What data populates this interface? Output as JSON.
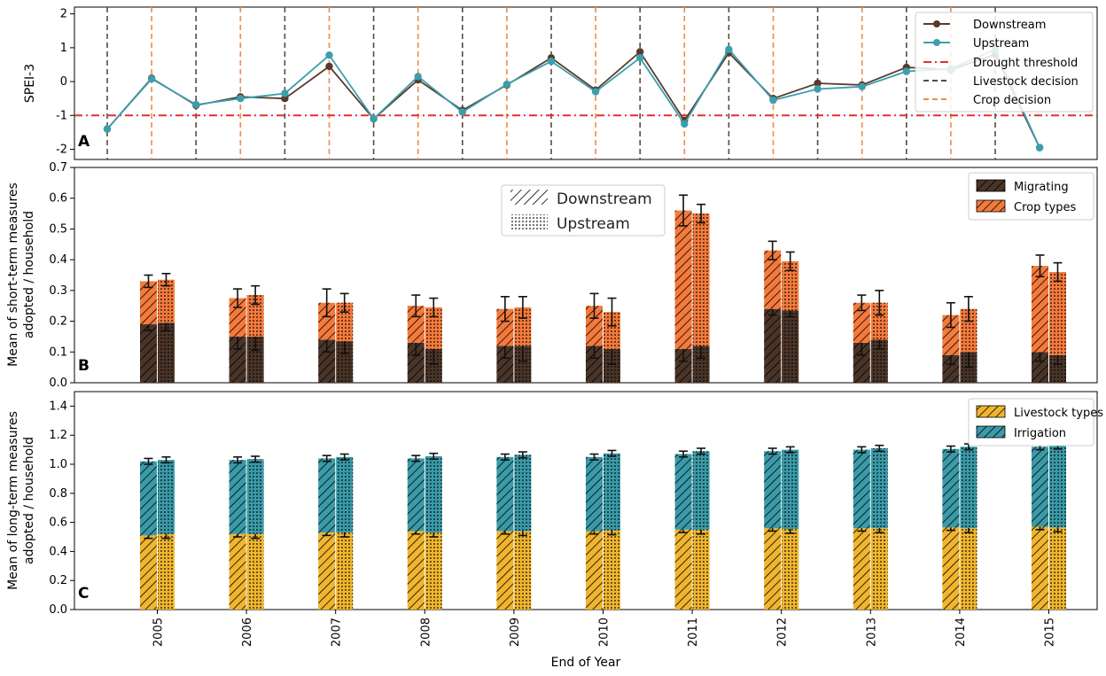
{
  "xlabel": "End of Year",
  "years": [
    "2005",
    "2006",
    "2007",
    "2008",
    "2009",
    "2010",
    "2011",
    "2012",
    "2013",
    "2014",
    "2015"
  ],
  "colors": {
    "downstream": "#5a3a2c",
    "upstream": "#3a9fae",
    "drought": "#e03030",
    "livestock_line": "#5a4a3e",
    "crop_line": "#f08a48",
    "migrating": "#4a3428",
    "crop_types": "#f47a3c",
    "livestock_types": "#f0b52e",
    "irrigation": "#3a9aa8"
  },
  "chart_data": [
    {
      "type": "line",
      "panel_label": "A",
      "ylabel": "SPEI-3",
      "ylim": [
        -2.3,
        2.2
      ],
      "yticks": [
        -2,
        -1,
        0,
        1,
        2
      ],
      "x_range": [
        0,
        21.2
      ],
      "drought_threshold": -1,
      "livestock_decision_x": [
        0,
        2,
        4,
        6,
        8,
        10,
        12,
        14,
        16,
        18,
        20
      ],
      "crop_decision_x": [
        1,
        3,
        5,
        7,
        9,
        11,
        13,
        15,
        17,
        19
      ],
      "series": [
        {
          "name": "Downstream",
          "x": [
            0,
            1,
            2,
            3,
            4,
            5,
            6,
            7,
            8,
            9,
            10,
            11,
            12,
            13,
            14,
            15,
            16,
            17,
            18,
            19,
            20,
            21
          ],
          "values": [
            -1.4,
            0.1,
            -0.7,
            -0.45,
            -0.5,
            0.45,
            -1.1,
            0.05,
            -0.85,
            -0.1,
            0.7,
            -0.25,
            0.88,
            -1.15,
            0.85,
            -0.5,
            -0.05,
            -0.1,
            0.42,
            0.35,
            0.8,
            -1.95
          ]
        },
        {
          "name": "Upstream",
          "x": [
            0,
            1,
            2,
            3,
            4,
            5,
            6,
            7,
            8,
            9,
            10,
            11,
            12,
            13,
            14,
            15,
            16,
            17,
            18,
            19,
            20,
            21
          ],
          "values": [
            -1.4,
            0.08,
            -0.68,
            -0.5,
            -0.35,
            0.78,
            -1.1,
            0.15,
            -0.9,
            -0.08,
            0.6,
            -0.3,
            0.7,
            -1.25,
            0.95,
            -0.55,
            -0.22,
            -0.15,
            0.3,
            0.38,
            0.95,
            -1.95
          ]
        }
      ],
      "legend": [
        "Downstream",
        "Upstream",
        "Drought threshold",
        "Livestock decision",
        "Crop decision"
      ],
      "legend_position": "top-right"
    },
    {
      "type": "bar",
      "stacked": true,
      "panel_label": "B",
      "ylabel_lines": [
        "Mean of short-term measures",
        "adopted / household"
      ],
      "ylim": [
        0,
        0.7
      ],
      "yticks": [
        0.0,
        0.1,
        0.2,
        0.3,
        0.4,
        0.5,
        0.6,
        0.7
      ],
      "categories": [
        "2005",
        "2006",
        "2007",
        "2008",
        "2009",
        "2010",
        "2011",
        "2012",
        "2013",
        "2014",
        "2015"
      ],
      "groups": [
        {
          "name": "Downstream",
          "hatch": "diagonal",
          "series": [
            {
              "name": "Migrating",
              "values": [
                0.19,
                0.15,
                0.14,
                0.13,
                0.12,
                0.12,
                0.11,
                0.24,
                0.13,
                0.09,
                0.1
              ],
              "errors": [
                0.02,
                0.04,
                0.04,
                0.04,
                0.04,
                0.04,
                0.04,
                0.02,
                0.04,
                0.03,
                0.03
              ]
            },
            {
              "name": "Crop types",
              "values": [
                0.14,
                0.125,
                0.12,
                0.12,
                0.12,
                0.13,
                0.45,
                0.19,
                0.13,
                0.13,
                0.28
              ],
              "errors": [
                0.02,
                0.03,
                0.045,
                0.035,
                0.04,
                0.04,
                0.05,
                0.03,
                0.025,
                0.04,
                0.035
              ]
            }
          ]
        },
        {
          "name": "Upstream",
          "hatch": "dots",
          "series": [
            {
              "name": "Migrating",
              "values": [
                0.195,
                0.15,
                0.135,
                0.11,
                0.12,
                0.11,
                0.12,
                0.235,
                0.14,
                0.1,
                0.09
              ],
              "errors": [
                0.025,
                0.045,
                0.04,
                0.05,
                0.05,
                0.05,
                0.04,
                0.02,
                0.03,
                0.05,
                0.03
              ]
            },
            {
              "name": "Crop types",
              "values": [
                0.14,
                0.135,
                0.125,
                0.135,
                0.125,
                0.12,
                0.43,
                0.16,
                0.12,
                0.14,
                0.27
              ],
              "errors": [
                0.02,
                0.03,
                0.03,
                0.03,
                0.035,
                0.045,
                0.03,
                0.03,
                0.04,
                0.04,
                0.03
              ]
            }
          ]
        }
      ],
      "legend": [
        "Migrating",
        "Crop types"
      ],
      "hatch_legend": [
        "Downstream",
        "Upstream"
      ],
      "legend_position": "top-right"
    },
    {
      "type": "bar",
      "stacked": true,
      "panel_label": "C",
      "ylabel_lines": [
        "Mean of long-term measures",
        "adopted / household"
      ],
      "ylim": [
        0,
        1.5
      ],
      "yticks": [
        0.0,
        0.2,
        0.4,
        0.6,
        0.8,
        1.0,
        1.2,
        1.4
      ],
      "categories": [
        "2005",
        "2006",
        "2007",
        "2008",
        "2009",
        "2010",
        "2011",
        "2012",
        "2013",
        "2014",
        "2015"
      ],
      "groups": [
        {
          "name": "Downstream",
          "hatch": "diagonal",
          "series": [
            {
              "name": "Livestock types",
              "values": [
                0.51,
                0.52,
                0.53,
                0.54,
                0.54,
                0.54,
                0.55,
                0.56,
                0.56,
                0.565,
                0.57
              ],
              "errors": [
                0.02,
                0.02,
                0.02,
                0.02,
                0.02,
                0.02,
                0.02,
                0.02,
                0.02,
                0.02,
                0.02
              ]
            },
            {
              "name": "Irrigation",
              "values": [
                0.51,
                0.51,
                0.51,
                0.5,
                0.51,
                0.51,
                0.52,
                0.53,
                0.54,
                0.54,
                0.55
              ],
              "errors": [
                0.02,
                0.02,
                0.02,
                0.02,
                0.02,
                0.02,
                0.02,
                0.02,
                0.02,
                0.02,
                0.02
              ]
            }
          ]
        },
        {
          "name": "Upstream",
          "hatch": "dots",
          "series": [
            {
              "name": "Livestock types",
              "values": [
                0.52,
                0.52,
                0.53,
                0.53,
                0.54,
                0.545,
                0.55,
                0.555,
                0.56,
                0.56,
                0.565
              ],
              "errors": [
                0.03,
                0.03,
                0.03,
                0.03,
                0.03,
                0.03,
                0.03,
                0.03,
                0.03,
                0.03,
                0.03
              ]
            },
            {
              "name": "Irrigation",
              "values": [
                0.51,
                0.515,
                0.52,
                0.525,
                0.525,
                0.53,
                0.54,
                0.545,
                0.55,
                0.56,
                0.56
              ],
              "errors": [
                0.02,
                0.02,
                0.02,
                0.02,
                0.02,
                0.02,
                0.02,
                0.02,
                0.02,
                0.02,
                0.02
              ]
            }
          ]
        }
      ],
      "legend": [
        "Livestock types",
        "Irrigation"
      ],
      "legend_position": "top-right"
    }
  ]
}
